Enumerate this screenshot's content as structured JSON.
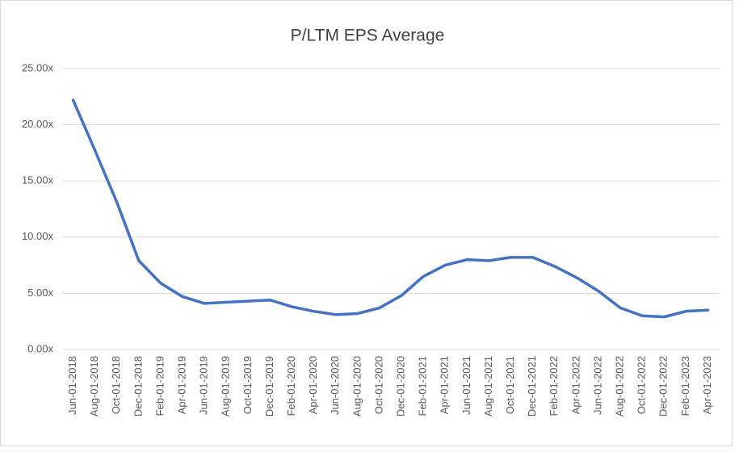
{
  "chart_data": {
    "type": "line",
    "title": "P/LTM EPS Average",
    "categories": [
      "Jun-01-2018",
      "Aug-01-2018",
      "Oct-01-2018",
      "Dec-01-2018",
      "Feb-01-2019",
      "Apr-01-2019",
      "Jun-01-2019",
      "Aug-01-2019",
      "Oct-01-2019",
      "Dec-01-2019",
      "Feb-01-2020",
      "Apr-01-2020",
      "Jun-01-2020",
      "Aug-01-2020",
      "Oct-01-2020",
      "Dec-01-2020",
      "Feb-01-2021",
      "Apr-01-2021",
      "Jun-01-2021",
      "Aug-01-2021",
      "Oct-01-2021",
      "Dec-01-2021",
      "Feb-01-2022",
      "Apr-01-2022",
      "Jun-01-2022",
      "Aug-01-2022",
      "Oct-01-2022",
      "Dec-01-2022",
      "Feb-01-2023",
      "Apr-01-2023"
    ],
    "values": [
      22.2,
      17.7,
      13.1,
      7.9,
      5.9,
      4.7,
      4.1,
      4.2,
      4.3,
      4.4,
      3.8,
      3.4,
      3.1,
      3.2,
      3.7,
      4.8,
      6.5,
      7.5,
      8.0,
      7.9,
      8.2,
      8.2,
      7.4,
      6.4,
      5.2,
      3.7,
      3.0,
      2.9,
      3.4,
      3.5
    ],
    "color": "#4472c4",
    "ylim": [
      0,
      25
    ],
    "yticks": [
      {
        "value": 0,
        "label": "0.00x"
      },
      {
        "value": 5,
        "label": "5.00x"
      },
      {
        "value": 10,
        "label": "10.00x"
      },
      {
        "value": 15,
        "label": "15.00x"
      },
      {
        "value": 20,
        "label": "20.00x"
      },
      {
        "value": 25,
        "label": "25.00x"
      }
    ],
    "grid": true
  }
}
